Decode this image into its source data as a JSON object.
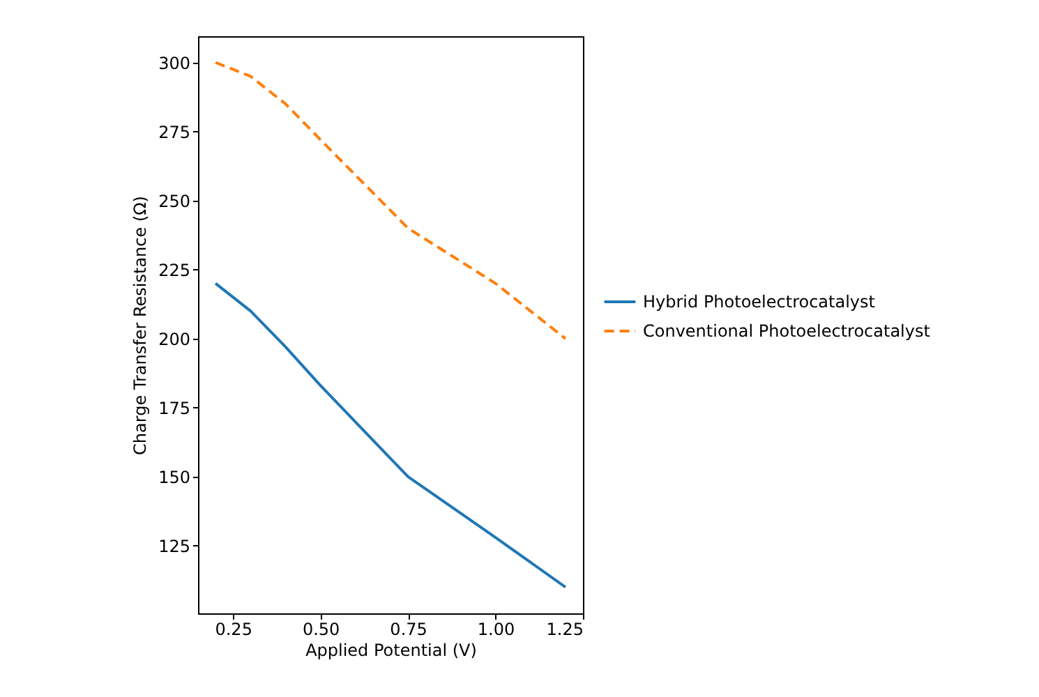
{
  "chart_data": {
    "type": "line",
    "xlabel": "Applied Potential (V)",
    "ylabel": "Charge Transfer Resistance (Ω)",
    "x": [
      0.2,
      0.3,
      0.4,
      0.5,
      0.75,
      1.0,
      1.2
    ],
    "series": [
      {
        "name": "Hybrid Photoelectrocatalyst",
        "color": "#1f77b4",
        "line_style": "solid",
        "values": [
          220,
          210,
          197,
          183,
          150,
          128,
          110
        ]
      },
      {
        "name": "Conventional Photoelectrocatalyst",
        "color": "#ff7f0e",
        "line_style": "dashed",
        "values": [
          300,
          295,
          285,
          272,
          240,
          220,
          200
        ]
      }
    ],
    "xlim": [
      0.15,
      1.25
    ],
    "xticks": [
      {
        "value": 0.25,
        "label": "0.25"
      },
      {
        "value": 0.5,
        "label": "0.50"
      },
      {
        "value": 0.75,
        "label": "0.75"
      },
      {
        "value": 1.0,
        "label": "1.00"
      },
      {
        "value": 1.25,
        "label": "1.25"
      }
    ],
    "ylim": [
      100.5,
      309.5
    ],
    "yticks": [
      125,
      150,
      175,
      200,
      225,
      250,
      275,
      300
    ],
    "grid": false,
    "legend": "right",
    "marker": "none"
  }
}
